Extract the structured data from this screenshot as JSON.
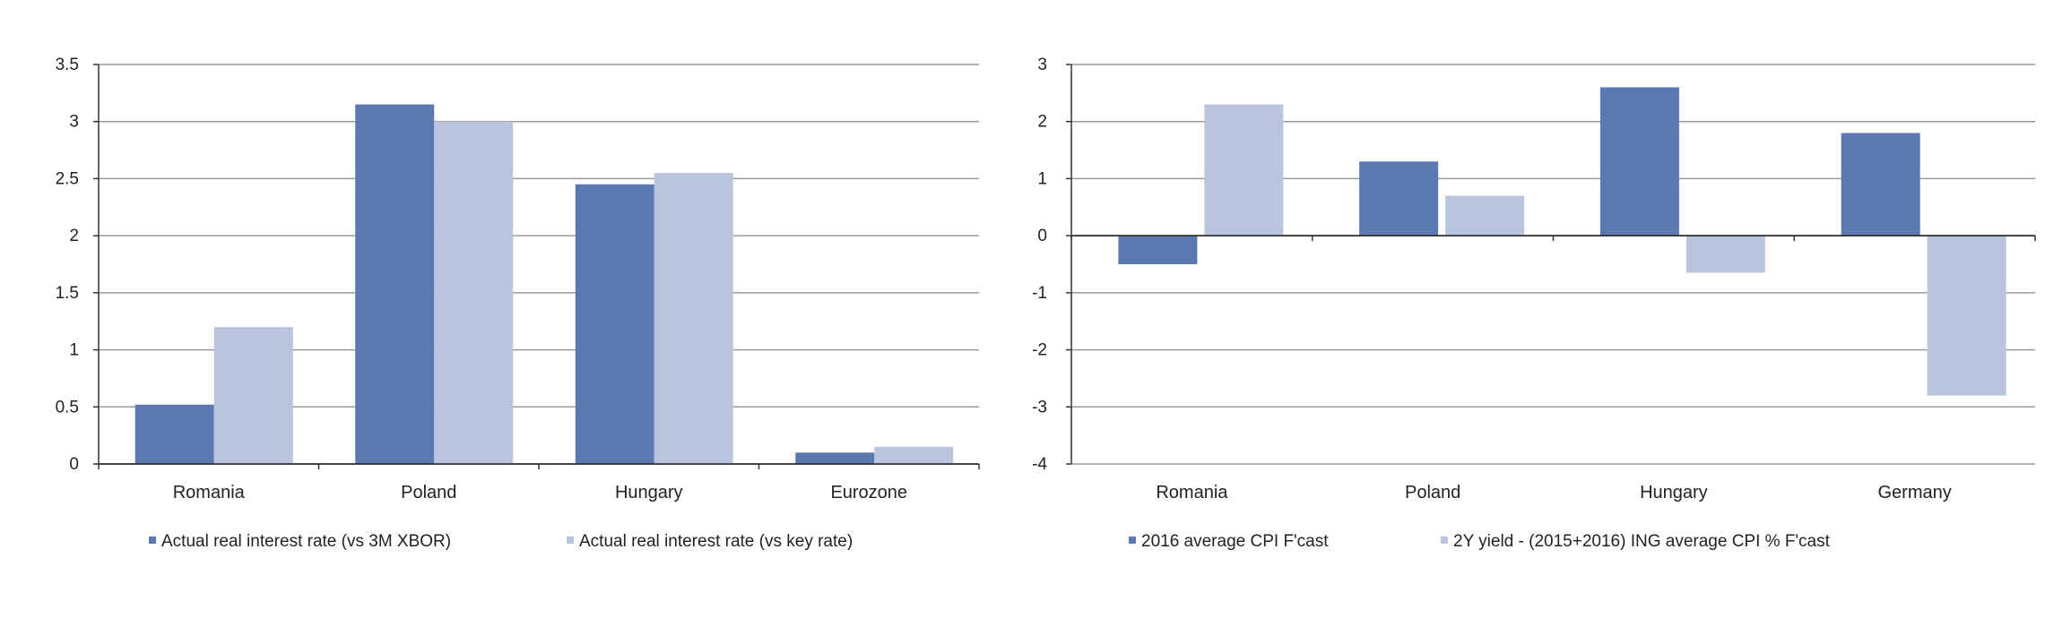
{
  "colors": {
    "series1": "#5b78b0",
    "series2": "#b9c5de",
    "grid": "#9a9a9a",
    "axis": "#333333"
  },
  "chart_data": [
    {
      "type": "bar",
      "categories": [
        "Romania",
        "Poland",
        "Hungary",
        "Eurozone"
      ],
      "series": [
        {
          "name": "Actual real interest rate (vs 3M XBOR)",
          "values": [
            0.52,
            3.15,
            2.45,
            0.1
          ]
        },
        {
          "name": "Actual real interest rate (vs key rate)",
          "values": [
            1.2,
            3.0,
            2.55,
            0.15
          ]
        }
      ],
      "ylim": [
        0,
        3.5
      ],
      "yticks": [
        "0",
        "0.5",
        "1",
        "1.5",
        "2",
        "2.5",
        "3",
        "3.5"
      ],
      "grid": true,
      "legend": "bottom"
    },
    {
      "type": "bar",
      "categories": [
        "Romania",
        "Poland",
        "Hungary",
        "Germany"
      ],
      "series": [
        {
          "name": "2016 average CPI F'cast",
          "values": [
            -0.5,
            1.3,
            2.6,
            1.8
          ]
        },
        {
          "name": "2Y yield - (2015+2016) ING average CPI % F'cast",
          "values": [
            2.3,
            0.7,
            -0.65,
            -2.8
          ]
        }
      ],
      "ylim": [
        -4,
        3
      ],
      "yticks": [
        "-4",
        "-3",
        "-2",
        "-1",
        "0",
        "1",
        "2",
        "3"
      ],
      "grid": true,
      "legend": "bottom"
    }
  ]
}
